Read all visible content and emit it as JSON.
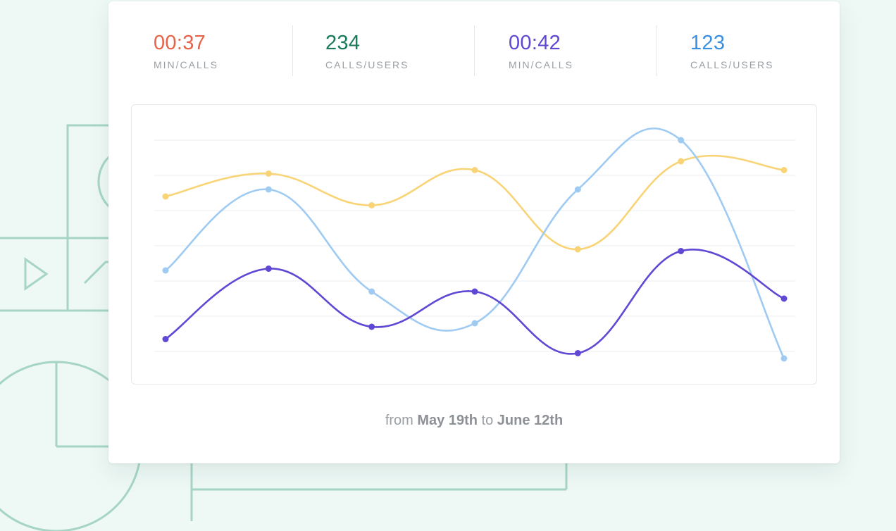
{
  "stats": [
    {
      "value": "00:37",
      "label": "MIN/CALLS",
      "color": "#e8624a"
    },
    {
      "value": "234",
      "label": "CALLS/USERS",
      "color": "#1a7a5a"
    },
    {
      "value": "00:42",
      "label": "MIN/CALLS",
      "color": "#6047d4"
    },
    {
      "value": "123",
      "label": "CALLS/USERS",
      "color": "#3a8fde"
    }
  ],
  "date_range": {
    "prefix": "from",
    "start": "May 19th",
    "middle": "to",
    "end": "June 12th"
  },
  "chart_data": {
    "type": "line",
    "smooth": true,
    "grid": true,
    "ylim": [
      0,
      6
    ],
    "x": [
      1,
      2,
      3,
      4,
      5,
      6,
      7
    ],
    "series": [
      {
        "color": "#f9d477",
        "values": [
          4.4,
          5.05,
          4.15,
          5.15,
          2.9,
          5.4,
          5.15
        ]
      },
      {
        "color": "#9fcbf3",
        "values": [
          2.3,
          4.6,
          1.7,
          0.8,
          4.6,
          6.0,
          -0.2
        ]
      },
      {
        "color": "#6047d4",
        "values": [
          0.35,
          2.35,
          0.7,
          1.7,
          -0.05,
          2.85,
          1.5
        ]
      }
    ]
  }
}
